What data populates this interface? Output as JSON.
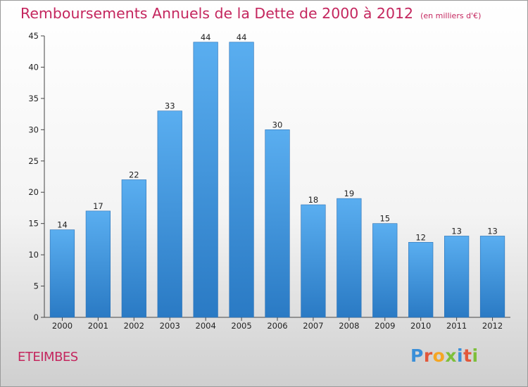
{
  "header": {
    "title": "Remboursements Annuels de la Dette de 2000 à 2012",
    "unit": "(en milliers d'€)"
  },
  "footer": {
    "commune": "ETEIMBES",
    "logo": [
      "P",
      "r",
      "o",
      "x",
      "i",
      "t",
      "i"
    ],
    "logo_colors": [
      "#3a8fd8",
      "#e2573a",
      "#f5a623",
      "#7dbf3a",
      "#3a8fd8",
      "#e2573a",
      "#7dbf3a"
    ]
  },
  "chart_data": {
    "type": "bar",
    "title": "Remboursements Annuels de la Dette de 2000 à 2012",
    "categories": [
      "2000",
      "2001",
      "2002",
      "2003",
      "2004",
      "2005",
      "2006",
      "2007",
      "2008",
      "2009",
      "2010",
      "2011",
      "2012"
    ],
    "values": [
      14,
      17,
      22,
      33,
      44,
      44,
      30,
      18,
      19,
      15,
      12,
      13,
      13
    ],
    "ylim": [
      0,
      45
    ],
    "yticks": [
      0,
      5,
      10,
      15,
      20,
      25,
      30,
      35,
      40,
      45
    ],
    "grid": false,
    "bar_color_top": "#5aaef0",
    "bar_color_bottom": "#2a7ac4"
  }
}
